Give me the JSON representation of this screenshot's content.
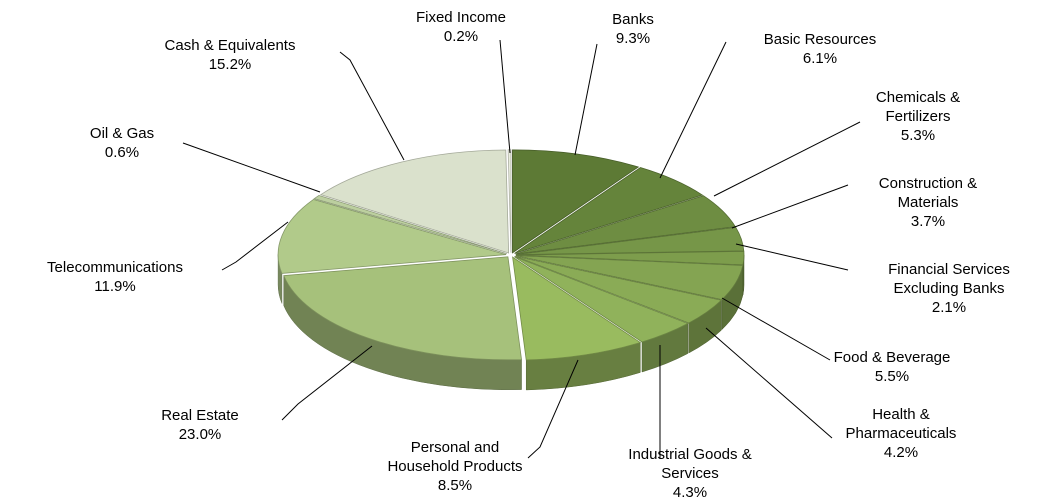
{
  "chart_data": {
    "type": "pie",
    "title": "",
    "style": "3d-exploded",
    "slices": [
      {
        "name_lines": [
          "Banks"
        ],
        "value": 9.3,
        "label": "9.3%",
        "color": "#5d7a35"
      },
      {
        "name_lines": [
          "Basic Resources"
        ],
        "value": 6.1,
        "label": "6.1%",
        "color": "#65843b"
      },
      {
        "name_lines": [
          "Chemicals &",
          "Fertilizers"
        ],
        "value": 5.3,
        "label": "5.3%",
        "color": "#6e8d42"
      },
      {
        "name_lines": [
          "Construction &",
          "Materials"
        ],
        "value": 3.7,
        "label": "3.7%",
        "color": "#769648"
      },
      {
        "name_lines": [
          "Financial Services",
          "Excluding Banks"
        ],
        "value": 2.1,
        "label": "2.1%",
        "color": "#7d9d4c"
      },
      {
        "name_lines": [
          "Food & Beverage"
        ],
        "value": 5.5,
        "label": "5.5%",
        "color": "#84a452"
      },
      {
        "name_lines": [
          "Health &",
          "Pharmaceuticals"
        ],
        "value": 4.2,
        "label": "4.2%",
        "color": "#8aab56"
      },
      {
        "name_lines": [
          "Industrial Goods &",
          "Services"
        ],
        "value": 4.3,
        "label": "4.3%",
        "color": "#90b25b"
      },
      {
        "name_lines": [
          "Personal and",
          "Household Products"
        ],
        "value": 8.5,
        "label": "8.5%",
        "color": "#99bb5f"
      },
      {
        "name_lines": [
          "Real Estate"
        ],
        "value": 23.0,
        "label": "23.0%",
        "color": "#a6c17b"
      },
      {
        "name_lines": [
          "Telecommunications"
        ],
        "value": 11.9,
        "label": "11.9%",
        "color": "#b1ca8a"
      },
      {
        "name_lines": [
          "Oil & Gas"
        ],
        "value": 0.6,
        "label": "0.6%",
        "color": "#bccf9f"
      },
      {
        "name_lines": [
          "Cash & Equivalents"
        ],
        "value": 15.2,
        "label": "15.2%",
        "color": "#dae1cc"
      },
      {
        "name_lines": [
          "Fixed Income"
        ],
        "value": 0.2,
        "label": "0.2%",
        "color": "#e8ecdc"
      }
    ]
  }
}
